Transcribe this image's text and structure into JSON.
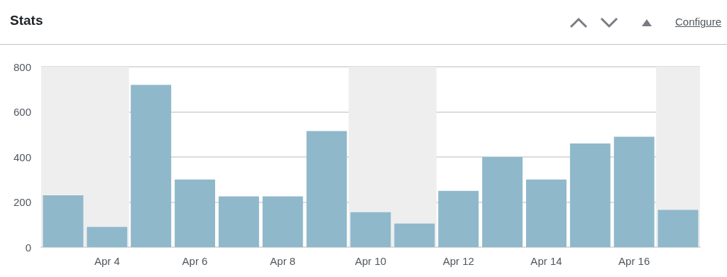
{
  "chart_data": {
    "type": "bar",
    "title": "Stats",
    "annotations": [
      "Configure"
    ],
    "categories": [
      null,
      "Apr 4",
      null,
      "Apr 6",
      null,
      "Apr 8",
      null,
      "Apr 10",
      null,
      "Apr 12",
      null,
      "Apr 14",
      null,
      "Apr 16",
      null
    ],
    "values": [
      230,
      90,
      720,
      300,
      225,
      225,
      515,
      155,
      105,
      250,
      400,
      300,
      460,
      490,
      165
    ],
    "color": "#8fb8cb",
    "ylim": [
      0,
      800
    ],
    "yticks": [
      0,
      200,
      400,
      600,
      800
    ],
    "grid": "y"
  }
}
